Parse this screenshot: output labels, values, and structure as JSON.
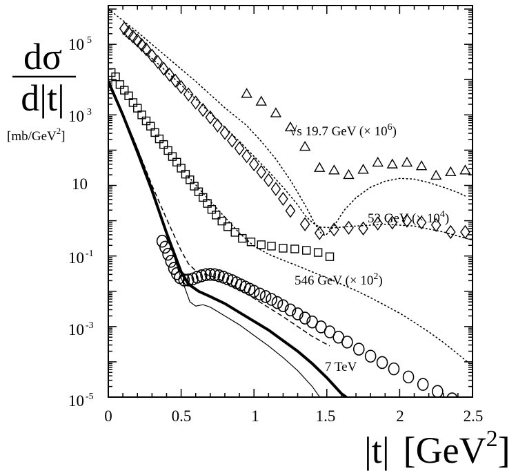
{
  "chart_data": {
    "type": "scatter",
    "title": "",
    "xlabel": {
      "abs_t": "|t|",
      "bracket_open": "[GeV",
      "power": "2",
      "bracket_close": "]"
    },
    "ylabel": {
      "numerator": "dσ",
      "denominator": "d|t|",
      "unit_base": "[mb/GeV",
      "unit_power": "2",
      "unit_close": "]"
    },
    "xlim": [
      0,
      2.5
    ],
    "ylim_log10": [
      -5,
      6.1
    ],
    "y_scale": "log",
    "grid": false,
    "x_ticks": [
      "0",
      "0.5",
      "1",
      "1.5",
      "2",
      "2.5"
    ],
    "y_ticks": [
      {
        "base": "10",
        "exp": "5"
      },
      {
        "base": "10",
        "exp": "3"
      },
      {
        "base": "10",
        "exp": ""
      },
      {
        "base": "10",
        "exp": "-1"
      },
      {
        "base": "10",
        "exp": "-3"
      },
      {
        "base": "10",
        "exp": "-5"
      }
    ],
    "annotations": {
      "s197": {
        "text": "√s 19.7 GeV (× 10",
        "power": "6",
        "close": ")"
      },
      "s53": {
        "text": "53 GeV (× 10",
        "power": "4",
        "close": ")"
      },
      "s546": {
        "text": "546 GeV (× 10",
        "power": "2",
        "close": ")"
      },
      "s7tev": {
        "text": "7 TeV"
      }
    },
    "data_series": [
      {
        "marker": "triangle",
        "points": [
          [
            0.95,
            3.6
          ],
          [
            1.05,
            3.38
          ],
          [
            1.15,
            3.05
          ],
          [
            1.25,
            2.65
          ],
          [
            1.35,
            2.1
          ],
          [
            1.45,
            1.5
          ],
          [
            1.55,
            1.43
          ],
          [
            1.65,
            1.3
          ],
          [
            1.75,
            1.45
          ],
          [
            1.85,
            1.65
          ],
          [
            1.95,
            1.6
          ],
          [
            2.05,
            1.65
          ],
          [
            2.15,
            1.55
          ],
          [
            2.25,
            1.28
          ],
          [
            2.35,
            1.38
          ],
          [
            2.45,
            1.43
          ]
        ]
      },
      {
        "marker": "diamond",
        "points": [
          [
            0.11,
            5.45
          ],
          [
            0.14,
            5.33
          ],
          [
            0.17,
            5.22
          ],
          [
            0.2,
            5.11
          ],
          [
            0.23,
            4.98
          ],
          [
            0.26,
            4.86
          ],
          [
            0.3,
            4.68
          ],
          [
            0.34,
            4.5
          ],
          [
            0.38,
            4.31
          ],
          [
            0.42,
            4.14
          ],
          [
            0.46,
            3.97
          ],
          [
            0.5,
            3.79
          ],
          [
            0.55,
            3.58
          ],
          [
            0.6,
            3.35
          ],
          [
            0.65,
            3.14
          ],
          [
            0.7,
            2.93
          ],
          [
            0.75,
            2.7
          ],
          [
            0.8,
            2.49
          ],
          [
            0.85,
            2.27
          ],
          [
            0.9,
            2.05
          ],
          [
            0.95,
            1.83
          ],
          [
            1.0,
            1.6
          ],
          [
            1.05,
            1.38
          ],
          [
            1.1,
            1.15
          ],
          [
            1.15,
            0.9
          ],
          [
            1.2,
            0.62
          ],
          [
            1.25,
            0.28
          ],
          [
            1.35,
            -0.1
          ],
          [
            1.45,
            -0.35
          ],
          [
            1.55,
            -0.25
          ],
          [
            1.65,
            -0.2
          ],
          [
            1.75,
            -0.22
          ],
          [
            1.85,
            -0.08
          ],
          [
            1.95,
            -0.05
          ],
          [
            2.05,
            0.0
          ],
          [
            2.15,
            -0.05
          ],
          [
            2.25,
            -0.12
          ],
          [
            2.35,
            -0.32
          ],
          [
            2.45,
            -0.32
          ]
        ]
      },
      {
        "marker": "square",
        "points": [
          [
            0.02,
            4.2
          ],
          [
            0.05,
            4.08
          ],
          [
            0.08,
            3.86
          ],
          [
            0.11,
            3.7
          ],
          [
            0.14,
            3.54
          ],
          [
            0.17,
            3.35
          ],
          [
            0.2,
            3.19
          ],
          [
            0.23,
            3.0
          ],
          [
            0.26,
            2.83
          ],
          [
            0.29,
            2.68
          ],
          [
            0.32,
            2.5
          ],
          [
            0.35,
            2.32
          ],
          [
            0.38,
            2.16
          ],
          [
            0.41,
            1.99
          ],
          [
            0.44,
            1.82
          ],
          [
            0.47,
            1.66
          ],
          [
            0.5,
            1.49
          ],
          [
            0.53,
            1.32
          ],
          [
            0.56,
            1.16
          ],
          [
            0.59,
            0.98
          ],
          [
            0.62,
            0.82
          ],
          [
            0.65,
            0.66
          ],
          [
            0.68,
            0.49
          ],
          [
            0.71,
            0.32
          ],
          [
            0.74,
            0.16
          ],
          [
            0.78,
            -0.01
          ],
          [
            0.82,
            -0.17
          ],
          [
            0.87,
            -0.33
          ],
          [
            0.92,
            -0.5
          ],
          [
            0.98,
            -0.6
          ],
          [
            1.05,
            -0.68
          ],
          [
            1.12,
            -0.72
          ],
          [
            1.2,
            -0.78
          ],
          [
            1.28,
            -0.8
          ],
          [
            1.36,
            -0.84
          ],
          [
            1.44,
            -0.9
          ],
          [
            1.52,
            -1.02
          ]
        ]
      },
      {
        "marker": "circle",
        "points": [
          [
            0.37,
            -0.58
          ],
          [
            0.39,
            -0.75
          ],
          [
            0.41,
            -0.95
          ],
          [
            0.43,
            -1.15
          ],
          [
            0.45,
            -1.35
          ],
          [
            0.47,
            -1.5
          ],
          [
            0.49,
            -1.61
          ],
          [
            0.52,
            -1.68
          ],
          [
            0.55,
            -1.68
          ],
          [
            0.58,
            -1.65
          ],
          [
            0.61,
            -1.6
          ],
          [
            0.64,
            -1.56
          ],
          [
            0.67,
            -1.53
          ],
          [
            0.7,
            -1.52
          ],
          [
            0.73,
            -1.53
          ],
          [
            0.76,
            -1.56
          ],
          [
            0.79,
            -1.6
          ],
          [
            0.82,
            -1.65
          ],
          [
            0.85,
            -1.7
          ],
          [
            0.88,
            -1.76
          ],
          [
            0.91,
            -1.82
          ],
          [
            0.94,
            -1.88
          ],
          [
            0.97,
            -1.94
          ],
          [
            1.0,
            -2.0
          ],
          [
            1.04,
            -2.08
          ],
          [
            1.08,
            -2.15
          ],
          [
            1.12,
            -2.23
          ],
          [
            1.16,
            -2.32
          ],
          [
            1.2,
            -2.41
          ],
          [
            1.25,
            -2.53
          ],
          [
            1.3,
            -2.64
          ],
          [
            1.35,
            -2.76
          ],
          [
            1.4,
            -2.87
          ],
          [
            1.46,
            -3.01
          ],
          [
            1.52,
            -3.15
          ],
          [
            1.58,
            -3.3
          ],
          [
            1.64,
            -3.44
          ],
          [
            1.72,
            -3.64
          ],
          [
            1.8,
            -3.84
          ],
          [
            1.88,
            -4.02
          ],
          [
            1.96,
            -4.2
          ],
          [
            2.06,
            -4.43
          ],
          [
            2.16,
            -4.64
          ],
          [
            2.26,
            -4.84
          ],
          [
            2.36,
            -5.05
          ],
          [
            2.45,
            -5.25
          ]
        ]
      }
    ],
    "curves": [
      {
        "style": "dotted",
        "points": [
          [
            0.0,
            6.0
          ],
          [
            0.2,
            5.35
          ],
          [
            0.4,
            4.65
          ],
          [
            0.6,
            3.95
          ],
          [
            0.8,
            3.2
          ],
          [
            0.95,
            2.7
          ],
          [
            1.05,
            2.25
          ],
          [
            1.15,
            1.75
          ],
          [
            1.25,
            1.15
          ],
          [
            1.35,
            0.45
          ],
          [
            1.42,
            -0.1
          ],
          [
            1.46,
            -0.35
          ],
          [
            1.49,
            -0.42
          ],
          [
            1.52,
            -0.3
          ],
          [
            1.56,
            -0.08
          ],
          [
            1.62,
            0.3
          ],
          [
            1.7,
            0.65
          ],
          [
            1.8,
            0.95
          ],
          [
            1.9,
            1.12
          ],
          [
            2.0,
            1.2
          ],
          [
            2.1,
            1.18
          ],
          [
            2.2,
            1.08
          ],
          [
            2.3,
            0.95
          ],
          [
            2.4,
            0.8
          ],
          [
            2.45,
            0.7
          ]
        ]
      },
      {
        "style": "dotted",
        "points": [
          [
            0.1,
            5.3
          ],
          [
            0.3,
            4.6
          ],
          [
            0.5,
            3.85
          ],
          [
            0.7,
            3.05
          ],
          [
            0.9,
            2.25
          ],
          [
            1.1,
            1.4
          ],
          [
            1.2,
            0.95
          ],
          [
            1.3,
            0.45
          ],
          [
            1.35,
            0.15
          ],
          [
            1.4,
            -0.05
          ],
          [
            1.45,
            -0.18
          ],
          [
            1.55,
            -0.2
          ],
          [
            1.7,
            -0.15
          ],
          [
            1.9,
            -0.1
          ],
          [
            2.1,
            -0.15
          ],
          [
            2.3,
            -0.32
          ],
          [
            2.5,
            -0.55
          ]
        ]
      },
      {
        "style": "dotted",
        "points": [
          [
            0.55,
            1.25
          ],
          [
            0.7,
            0.55
          ],
          [
            0.8,
            0.1
          ],
          [
            0.9,
            -0.35
          ],
          [
            1.0,
            -0.72
          ],
          [
            1.1,
            -0.95
          ],
          [
            1.2,
            -1.12
          ],
          [
            1.3,
            -1.28
          ],
          [
            1.4,
            -1.45
          ],
          [
            1.5,
            -1.62
          ],
          [
            1.6,
            -1.8
          ],
          [
            1.7,
            -1.98
          ],
          [
            1.8,
            -2.18
          ],
          [
            1.9,
            -2.4
          ],
          [
            2.0,
            -2.62
          ],
          [
            2.1,
            -2.88
          ],
          [
            2.2,
            -3.15
          ],
          [
            2.3,
            -3.45
          ],
          [
            2.4,
            -3.78
          ],
          [
            2.5,
            -4.12
          ]
        ]
      },
      {
        "style": "thick",
        "points": [
          [
            0.0,
            3.95
          ],
          [
            0.1,
            3.0
          ],
          [
            0.2,
            1.95
          ],
          [
            0.3,
            0.85
          ],
          [
            0.4,
            -0.35
          ],
          [
            0.5,
            -1.45
          ],
          [
            0.55,
            -1.8
          ],
          [
            0.62,
            -2.0
          ],
          [
            0.7,
            -2.15
          ],
          [
            0.8,
            -2.35
          ],
          [
            0.9,
            -2.6
          ],
          [
            1.0,
            -2.85
          ],
          [
            1.1,
            -3.1
          ],
          [
            1.2,
            -3.4
          ],
          [
            1.3,
            -3.7
          ],
          [
            1.4,
            -4.05
          ],
          [
            1.5,
            -4.45
          ],
          [
            1.6,
            -4.9
          ],
          [
            1.65,
            -5.05
          ]
        ]
      },
      {
        "style": "dashed",
        "points": [
          [
            0.0,
            4.0
          ],
          [
            0.1,
            3.05
          ],
          [
            0.2,
            2.05
          ],
          [
            0.3,
            1.0
          ],
          [
            0.4,
            0.05
          ],
          [
            0.5,
            -0.85
          ],
          [
            0.55,
            -1.22
          ],
          [
            0.6,
            -1.42
          ],
          [
            0.65,
            -1.5
          ],
          [
            0.7,
            -1.56
          ],
          [
            0.8,
            -1.72
          ],
          [
            0.9,
            -1.95
          ],
          [
            1.0,
            -2.2
          ],
          [
            1.2,
            -2.72
          ],
          [
            1.4,
            -3.28
          ],
          [
            1.52,
            -3.55
          ]
        ]
      },
      {
        "style": "thin",
        "points": [
          [
            0.0,
            4.0
          ],
          [
            0.1,
            3.05
          ],
          [
            0.2,
            2.05
          ],
          [
            0.3,
            0.95
          ],
          [
            0.4,
            -0.3
          ],
          [
            0.48,
            -1.4
          ],
          [
            0.53,
            -1.95
          ],
          [
            0.56,
            -2.3
          ],
          [
            0.6,
            -2.42
          ],
          [
            0.65,
            -2.38
          ],
          [
            0.7,
            -2.45
          ],
          [
            0.8,
            -2.7
          ],
          [
            0.9,
            -2.95
          ],
          [
            1.0,
            -3.25
          ],
          [
            1.1,
            -3.55
          ],
          [
            1.2,
            -3.88
          ],
          [
            1.3,
            -4.25
          ],
          [
            1.4,
            -4.7
          ],
          [
            1.46,
            -5.05
          ]
        ]
      }
    ]
  }
}
